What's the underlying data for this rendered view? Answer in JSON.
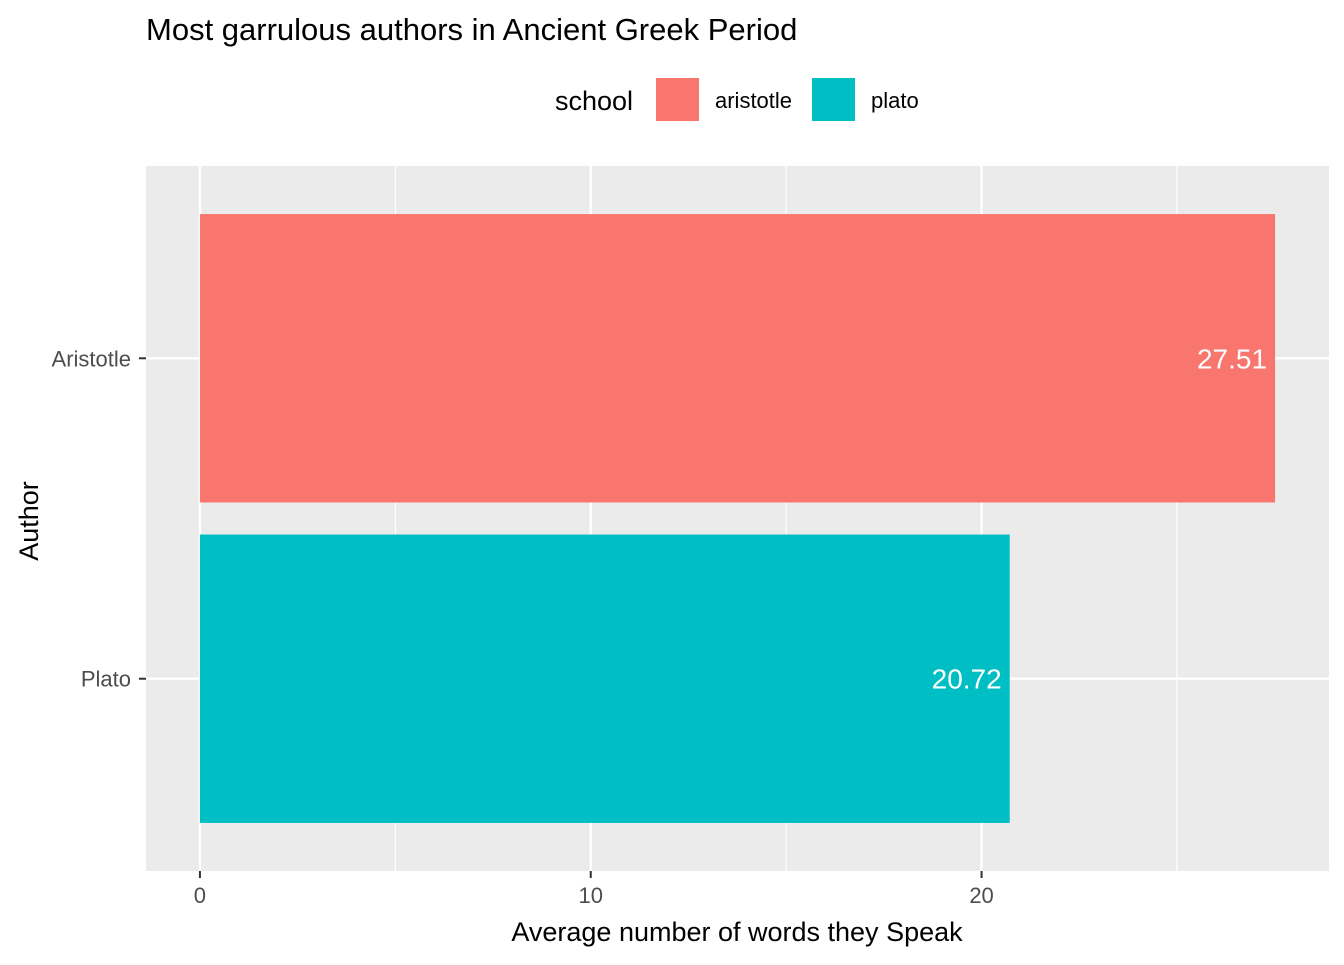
{
  "chart_data": {
    "type": "bar",
    "orientation": "horizontal",
    "title": "Most garrulous authors in Ancient Greek Period",
    "xlabel": "Average number of words they Speak",
    "ylabel": "Author",
    "categories": [
      "Aristotle",
      "Plato"
    ],
    "values": [
      27.51,
      20.72
    ],
    "data_labels": [
      "27.51",
      "20.72"
    ],
    "fill_group": [
      "aristotle",
      "plato"
    ],
    "xlim": [
      -1.38,
      28.89
    ],
    "x_ticks": [
      0,
      10,
      20
    ],
    "x_tick_labels": [
      "0",
      "10",
      "20"
    ],
    "x_minor_ticks": [
      5,
      15,
      25
    ],
    "grid": true,
    "legend": {
      "title": "school",
      "position": "top",
      "entries": [
        {
          "label": "aristotle",
          "color": "#F8766D"
        },
        {
          "label": "plato",
          "color": "#00BFC4"
        }
      ]
    },
    "colors": {
      "panel_background": "#EBEBEB",
      "grid": "#FFFFFF",
      "tick_text": "#4D4D4D",
      "tick_mark": "#333333",
      "data_label": "#FFFFFF"
    }
  }
}
